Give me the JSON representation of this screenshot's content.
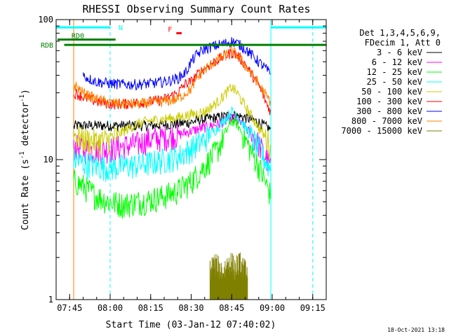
{
  "chart_data": {
    "type": "line",
    "title": "RHESSI Observing Summary Count Rates",
    "xlabel": "Start Time (03-Jan-12 07:40:02)",
    "ylabel_main": "Count Rate (s",
    "ylabel_sup1": "-1",
    "ylabel_mid": " detector",
    "ylabel_sup2": "-1",
    "ylabel_end": ")",
    "yscale": "log",
    "ylim": [
      1,
      100
    ],
    "xlim_minutes": [
      0,
      100
    ],
    "x_ticks": [
      {
        "label": "07:45",
        "m": 5
      },
      {
        "label": "08:00",
        "m": 20
      },
      {
        "label": "08:15",
        "m": 35
      },
      {
        "label": "08:30",
        "m": 50
      },
      {
        "label": "08:45",
        "m": 65
      },
      {
        "label": "09:00",
        "m": 80
      },
      {
        "label": "09:15",
        "m": 95
      }
    ],
    "y_ticks": [
      {
        "label": "1",
        "v": 1
      },
      {
        "label": "10",
        "v": 10
      },
      {
        "label": "100",
        "v": 100
      }
    ],
    "legend_header": [
      "Det 1,3,4,5,6,9,",
      "FDecim 1, Att 0"
    ],
    "series": [
      {
        "name": "3 - 6 keV",
        "color": "#000000",
        "x": [
          6.5,
          7,
          10,
          15,
          20,
          25,
          30,
          35,
          40,
          45,
          50,
          52,
          55,
          60,
          63,
          65,
          67,
          70,
          75,
          78,
          79.5
        ],
        "y": [
          17,
          17.5,
          17.5,
          17.5,
          17.5,
          17.5,
          17.5,
          17.5,
          17.8,
          18,
          18.5,
          19,
          19.5,
          20,
          20.5,
          21,
          20.5,
          20,
          18.5,
          17,
          16.5
        ]
      },
      {
        "name": "6 - 12 keV",
        "color": "#ff00ff",
        "x": [
          6.5,
          7,
          10,
          15,
          20,
          25,
          30,
          35,
          40,
          45,
          50,
          55,
          60,
          63,
          65,
          67,
          70,
          75,
          78,
          79.5
        ],
        "y": [
          12,
          12.5,
          12,
          11.5,
          12,
          12.5,
          13,
          14,
          14.5,
          15,
          16,
          17,
          18,
          19,
          20,
          19,
          17,
          13,
          10,
          9
        ]
      },
      {
        "name": "12 - 25 keV",
        "color": "#00ff00",
        "x": [
          6.5,
          7,
          10,
          15,
          20,
          25,
          30,
          35,
          40,
          45,
          50,
          55,
          60,
          63,
          65,
          67,
          70,
          75,
          78,
          79.5
        ],
        "y": [
          7,
          7,
          6.5,
          5.5,
          5,
          4.8,
          5,
          5.2,
          5.5,
          6,
          7,
          9,
          12,
          16,
          19,
          18,
          14,
          9,
          6.5,
          5.5
        ]
      },
      {
        "name": "25 - 50 keV",
        "color": "#00ffff",
        "x": [
          6.5,
          7,
          10,
          15,
          20,
          25,
          30,
          35,
          40,
          45,
          50,
          55,
          60,
          63,
          65,
          67,
          70,
          75,
          78,
          79.5
        ],
        "y": [
          10,
          10,
          9.5,
          9,
          8.8,
          9,
          9.2,
          9.5,
          10,
          10.5,
          12,
          14,
          17,
          20,
          22,
          21,
          17,
          12,
          9.5,
          8.5
        ]
      },
      {
        "name": "50 - 100 keV",
        "color": "#cccc00",
        "x": [
          6.5,
          7,
          10,
          15,
          20,
          25,
          30,
          35,
          40,
          45,
          50,
          55,
          60,
          63,
          65,
          67,
          70,
          75,
          78,
          79.5
        ],
        "y": [
          15,
          15,
          14,
          13.5,
          14,
          16,
          18,
          19,
          19.5,
          20,
          21,
          22,
          26,
          30,
          33,
          30,
          24,
          17,
          14,
          12
        ]
      },
      {
        "name": "100 - 300 keV",
        "color": "#ff0000",
        "x": [
          6.5,
          7,
          10,
          15,
          20,
          25,
          30,
          35,
          40,
          45,
          48,
          50,
          52,
          55,
          60,
          63,
          65,
          67,
          70,
          75,
          78,
          79.5
        ],
        "y": [
          28,
          30,
          28,
          26,
          25,
          25,
          25.5,
          26,
          27,
          30,
          35,
          36,
          40,
          45,
          52,
          56,
          58,
          56,
          48,
          34,
          25,
          22
        ]
      },
      {
        "name": "300 - 800 keV",
        "color": "#0000ff",
        "x": [
          10,
          12,
          15,
          20,
          25,
          30,
          35,
          40,
          45,
          48,
          50,
          52,
          55,
          60,
          63,
          65,
          67,
          70,
          75,
          78,
          79.5
        ],
        "y": [
          40,
          38,
          36,
          35,
          34.5,
          34.5,
          35,
          36,
          38,
          42,
          50,
          56,
          62,
          66,
          68,
          70,
          68,
          62,
          50,
          44,
          40
        ]
      },
      {
        "name": "800 - 7000 keV",
        "color": "#ff8000",
        "x": [
          6.5,
          7,
          10,
          15,
          20,
          25,
          30,
          35,
          40,
          45,
          48,
          50,
          52,
          55,
          60,
          63,
          65,
          67,
          70,
          75,
          78,
          79.5
        ],
        "y": [
          32,
          34,
          30,
          27,
          25.5,
          25,
          25,
          25.5,
          26,
          27,
          30,
          32,
          38,
          44,
          52,
          56,
          60,
          56,
          47,
          35,
          28,
          26
        ]
      },
      {
        "name": "7000 - 15000 keV",
        "color": "#808000",
        "x": [
          57,
          58,
          60,
          62,
          64,
          66,
          68,
          70,
          71
        ],
        "y": [
          1.5,
          1.7,
          1.6,
          1.5,
          1.8,
          1.6,
          1.7,
          1.5,
          1.6
        ]
      }
    ],
    "annotations": [
      {
        "text": "RD0",
        "color": "#008000",
        "kind": "flag",
        "segments": [
          [
            0.5,
            3
          ],
          [
            3,
            22
          ]
        ],
        "level": 72
      },
      {
        "text": "RDB",
        "color": "#008000",
        "kind": "flag",
        "segments": [
          [
            3,
            100
          ]
        ],
        "level": 66
      },
      {
        "text": "N",
        "color": "#00ffff",
        "kind": "night",
        "segments": [
          [
            0,
            20
          ],
          [
            79.5,
            100
          ]
        ],
        "level": 88
      },
      {
        "text": "F",
        "color": "#ff0000",
        "kind": "flare",
        "segments": [
          [
            44.5,
            46.5
          ]
        ],
        "level": 80
      }
    ],
    "vlines": [
      {
        "m": 6.5,
        "color": "#ff8000"
      },
      {
        "m": 20,
        "color": "#00ffff",
        "dashed": true
      },
      {
        "m": 79.5,
        "color": "#00ffff"
      },
      {
        "m": 95,
        "color": "#00ffff",
        "dashed": true
      }
    ],
    "footer": "18-Oct-2021 13:18"
  }
}
